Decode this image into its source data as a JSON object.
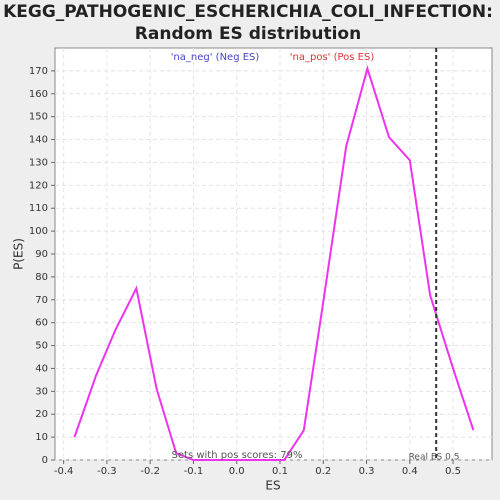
{
  "chart_data": {
    "type": "line",
    "title": [
      "KEGG_PATHOGENIC_ESCHERICHIA_COLI_INFECTION:",
      "Random ES distribution"
    ],
    "x_label": "ES",
    "y_label": "P(ES)",
    "legend": [
      "'na_neg' (Neg ES)",
      "'na_pos' (Pos ES)"
    ],
    "legend_colors": [
      "#4444cc",
      "#dd3333"
    ],
    "annotations": [
      "Sets with pos scores: 79%",
      "Real ES 0.5"
    ],
    "vline_x": 0.461,
    "x": [
      -0.375,
      -0.325,
      -0.28,
      -0.232,
      -0.185,
      -0.14,
      -0.1,
      0.11,
      0.155,
      0.2,
      0.253,
      0.302,
      0.352,
      0.4,
      0.447,
      0.5,
      0.547
    ],
    "series": [
      {
        "name": "ES",
        "color": "#ee33ee",
        "values": [
          10,
          37,
          57,
          75,
          31,
          3,
          0,
          0,
          13,
          69,
          137,
          171,
          141,
          131,
          72,
          40,
          13
        ]
      }
    ],
    "xlim": [
      -0.42,
      0.59
    ],
    "ylim": [
      0,
      180
    ],
    "xticks": [
      -0.4,
      -0.3,
      -0.2,
      -0.1,
      {
        "value": 0,
        "label": "0.0"
      },
      0.1,
      0.2,
      0.3,
      0.4,
      0.5
    ],
    "yticks": [
      0,
      10,
      20,
      30,
      40,
      50,
      60,
      70,
      80,
      90,
      100,
      110,
      120,
      130,
      140,
      150,
      160,
      170
    ],
    "grid": true
  }
}
